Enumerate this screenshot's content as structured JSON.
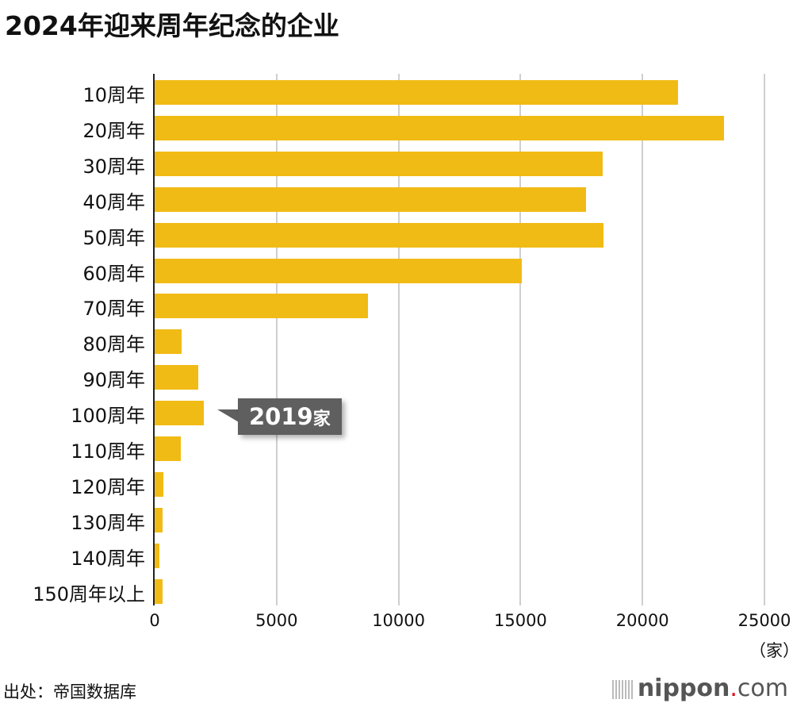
{
  "title": "2024年迎来周年纪念的企业",
  "chart_data": {
    "type": "bar",
    "orientation": "horizontal",
    "title": "2024年迎来周年纪念的企业",
    "categories": [
      "10周年",
      "20周年",
      "30周年",
      "40周年",
      "50周年",
      "60周年",
      "70周年",
      "80周年",
      "90周年",
      "100周年",
      "110周年",
      "120周年",
      "130周年",
      "140周年",
      "150周年以上"
    ],
    "values": [
      21460,
      23340,
      18370,
      17680,
      18390,
      15050,
      8750,
      1100,
      1790,
      2019,
      1070,
      360,
      330,
      190,
      330
    ],
    "xlabel": "（家）",
    "ylabel": "",
    "xlim": [
      0,
      25000
    ],
    "xticks": [
      "0",
      "5000",
      "10000",
      "15000",
      "20000",
      "25000"
    ],
    "grid": true,
    "bar_color": "#f1bb15",
    "annotation": {
      "category": "100周年",
      "text": "2019家",
      "value": 2019
    }
  },
  "callout": {
    "number": "2019",
    "unit": "家"
  },
  "axis": {
    "unit": "（家）"
  },
  "footer": {
    "source": "出处：帝国数据库",
    "logo_main": "nippon",
    "logo_dot": ".",
    "logo_tail": "com"
  }
}
